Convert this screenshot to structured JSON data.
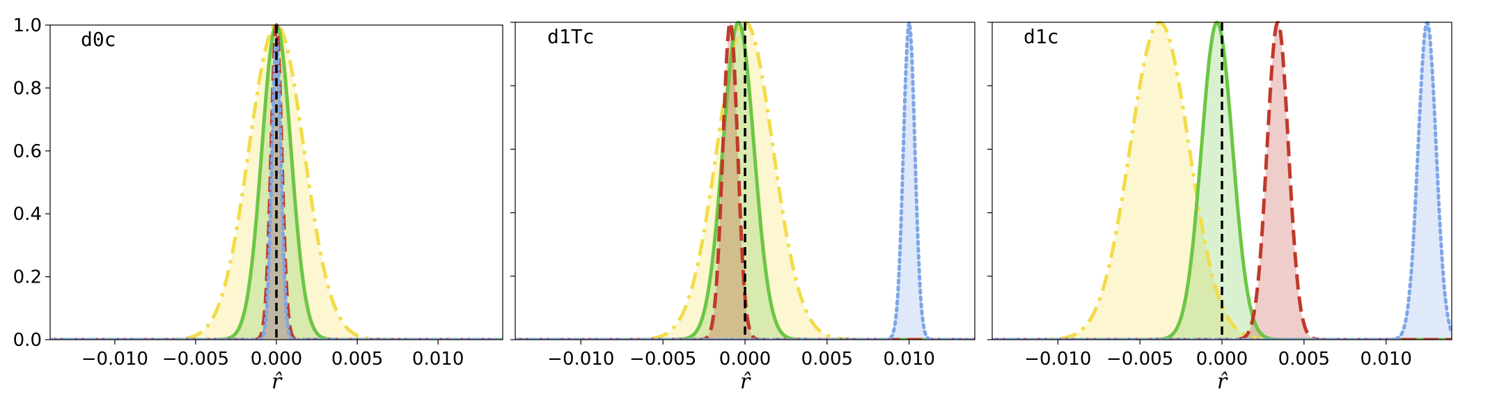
{
  "colors": {
    "yellow": "#f2dc48",
    "green": "#6cc644",
    "red": "#c0392b",
    "blue": "#7ea6e8",
    "zero_line": "#000000"
  },
  "chart_data": [
    {
      "type": "line",
      "title": "d0c",
      "xlabel": "r̂",
      "xlim": [
        -0.014,
        0.014
      ],
      "ylim": [
        0,
        1.0
      ],
      "x_ticks": [
        "−0.010",
        "−0.005",
        "0.000",
        "0.005",
        "0.010"
      ],
      "y_ticks": [
        "0.0",
        "0.2",
        "0.4",
        "0.6",
        "0.8",
        "1.0"
      ],
      "show_y_tick_labels": true,
      "reference_line_x": 0.0,
      "series": [
        {
          "color_key": "yellow",
          "style": "dashdot",
          "fill": true,
          "mean": 0.0,
          "sigma": 0.0017,
          "peak": 1.0
        },
        {
          "color_key": "green",
          "style": "solid",
          "fill": true,
          "mean": 0.0,
          "sigma": 0.0009,
          "peak": 1.0
        },
        {
          "color_key": "red",
          "style": "dashed",
          "fill": true,
          "mean": 0.0,
          "sigma": 0.00033,
          "peak": 1.0
        },
        {
          "color_key": "blue",
          "style": "dotted",
          "fill": true,
          "mean": 0.0,
          "sigma": 0.00028,
          "peak": 0.95
        }
      ]
    },
    {
      "type": "line",
      "title": "d1Tc",
      "xlabel": "r̂",
      "xlim": [
        -0.014,
        0.014
      ],
      "ylim": [
        0,
        1.0
      ],
      "x_ticks": [
        "−0.010",
        "−0.005",
        "0.000",
        "0.005",
        "0.010"
      ],
      "y_ticks": [
        "0.0",
        "0.2",
        "0.4",
        "0.6",
        "0.8",
        "1.0"
      ],
      "show_y_tick_labels": false,
      "reference_line_x": 0.0,
      "series": [
        {
          "color_key": "yellow",
          "style": "dashdot",
          "fill": true,
          "mean": 0.0,
          "sigma": 0.0017,
          "peak": 1.0
        },
        {
          "color_key": "green",
          "style": "solid",
          "fill": true,
          "mean": -0.0004,
          "sigma": 0.00095,
          "peak": 1.0
        },
        {
          "color_key": "red",
          "style": "dashed",
          "fill": true,
          "mean": -0.0009,
          "sigma": 0.00045,
          "peak": 1.0
        },
        {
          "color_key": "blue",
          "style": "dotted",
          "fill": true,
          "mean": 0.01,
          "sigma": 0.00035,
          "peak": 1.0
        }
      ]
    },
    {
      "type": "line",
      "title": "d1c",
      "xlabel": "r̂",
      "xlim": [
        -0.014,
        0.014
      ],
      "ylim": [
        0,
        1.0
      ],
      "x_ticks": [
        "−0.010",
        "−0.005",
        "0.000",
        "0.005",
        "0.010"
      ],
      "y_ticks": [
        "0.0",
        "0.2",
        "0.4",
        "0.6",
        "0.8",
        "1.0"
      ],
      "show_y_tick_labels": false,
      "reference_line_x": 0.0,
      "series": [
        {
          "color_key": "yellow",
          "style": "dashdot",
          "fill": true,
          "mean": -0.0038,
          "sigma": 0.0018,
          "peak": 1.0
        },
        {
          "color_key": "green",
          "style": "solid",
          "fill": true,
          "mean": -0.0003,
          "sigma": 0.00095,
          "peak": 1.0
        },
        {
          "color_key": "red",
          "style": "dashed",
          "fill": true,
          "mean": 0.0034,
          "sigma": 0.00065,
          "peak": 1.0
        },
        {
          "color_key": "blue",
          "style": "dotted",
          "fill": true,
          "mean": 0.0125,
          "sigma": 0.00055,
          "peak": 1.0
        }
      ]
    }
  ]
}
